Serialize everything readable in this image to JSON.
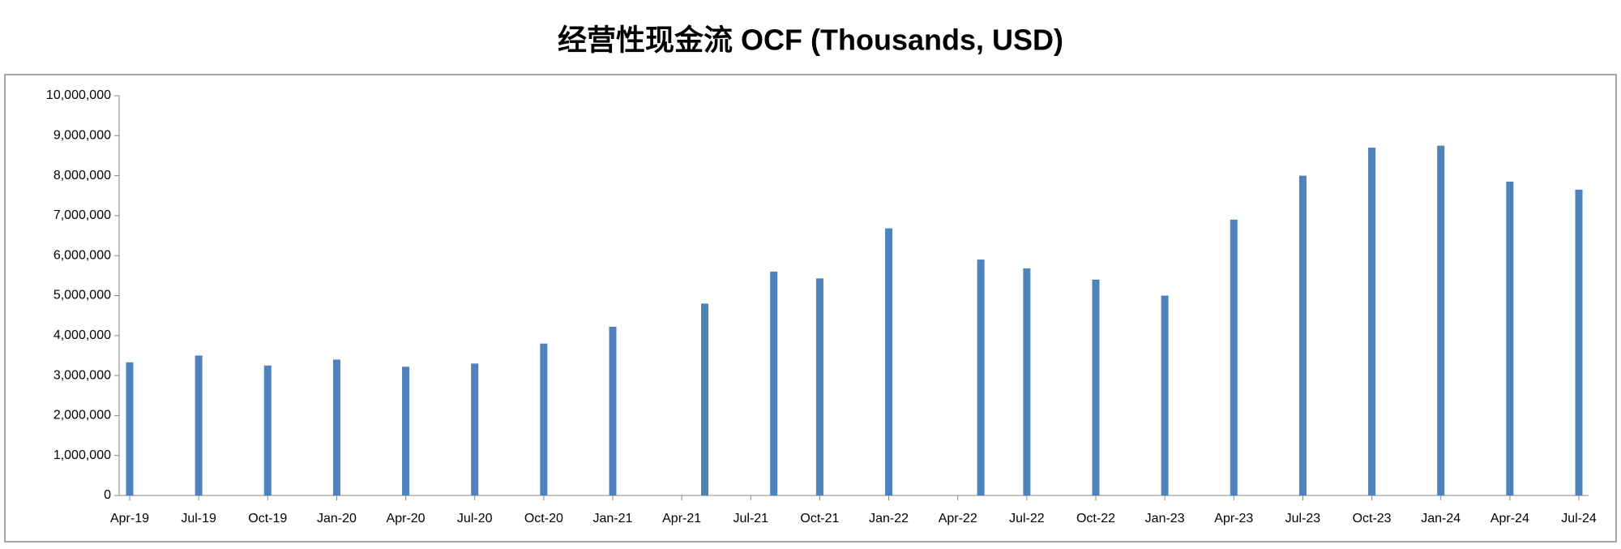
{
  "chart_data": {
    "type": "bar",
    "title": "经营性现金流 OCF (Thousands, USD)",
    "x": [
      "2019-04",
      "2019-07",
      "2019-10",
      "2020-01",
      "2020-04",
      "2020-07",
      "2020-10",
      "2021-01",
      "2021-05",
      "2021-08",
      "2021-10",
      "2022-01",
      "2022-05",
      "2022-07",
      "2022-10",
      "2023-01",
      "2023-04",
      "2023-07",
      "2023-10",
      "2024-01",
      "2024-04",
      "2024-07"
    ],
    "values": [
      3330000,
      3500000,
      3250000,
      3400000,
      3220000,
      3300000,
      3800000,
      4220000,
      4800000,
      5600000,
      5430000,
      6680000,
      5900000,
      5680000,
      5400000,
      5000000,
      6900000,
      8000000,
      8700000,
      8750000,
      7850000,
      7650000
    ],
    "color": "#4f81bd",
    "xlim": [
      "2019-04",
      "2024-07"
    ],
    "xticks": [
      {
        "value": "2019-04",
        "label": "Apr-19"
      },
      {
        "value": "2019-07",
        "label": "Jul-19"
      },
      {
        "value": "2019-10",
        "label": "Oct-19"
      },
      {
        "value": "2020-01",
        "label": "Jan-20"
      },
      {
        "value": "2020-04",
        "label": "Apr-20"
      },
      {
        "value": "2020-07",
        "label": "Jul-20"
      },
      {
        "value": "2020-10",
        "label": "Oct-20"
      },
      {
        "value": "2021-01",
        "label": "Jan-21"
      },
      {
        "value": "2021-04",
        "label": "Apr-21"
      },
      {
        "value": "2021-07",
        "label": "Jul-21"
      },
      {
        "value": "2021-10",
        "label": "Oct-21"
      },
      {
        "value": "2022-01",
        "label": "Jan-22"
      },
      {
        "value": "2022-04",
        "label": "Apr-22"
      },
      {
        "value": "2022-07",
        "label": "Jul-22"
      },
      {
        "value": "2022-10",
        "label": "Oct-22"
      },
      {
        "value": "2023-01",
        "label": "Jan-23"
      },
      {
        "value": "2023-04",
        "label": "Apr-23"
      },
      {
        "value": "2023-07",
        "label": "Jul-23"
      },
      {
        "value": "2023-10",
        "label": "Oct-23"
      },
      {
        "value": "2024-01",
        "label": "Jan-24"
      },
      {
        "value": "2024-04",
        "label": "Apr-24"
      },
      {
        "value": "2024-07",
        "label": "Jul-24"
      }
    ],
    "ylim": [
      0,
      10000000
    ],
    "yticks": [
      0,
      {
        "value": 1000000,
        "label": "1,000,000"
      },
      {
        "value": 2000000,
        "label": "2,000,000"
      },
      {
        "value": 3000000,
        "label": "3,000,000"
      },
      {
        "value": 4000000,
        "label": "4,000,000"
      },
      {
        "value": 5000000,
        "label": "5,000,000"
      },
      {
        "value": 6000000,
        "label": "6,000,000"
      },
      {
        "value": 7000000,
        "label": "7,000,000"
      },
      {
        "value": 8000000,
        "label": "8,000,000"
      },
      {
        "value": 9000000,
        "label": "9,000,000"
      },
      {
        "value": 10000000,
        "label": "10,000,000"
      }
    ],
    "grid": false
  }
}
